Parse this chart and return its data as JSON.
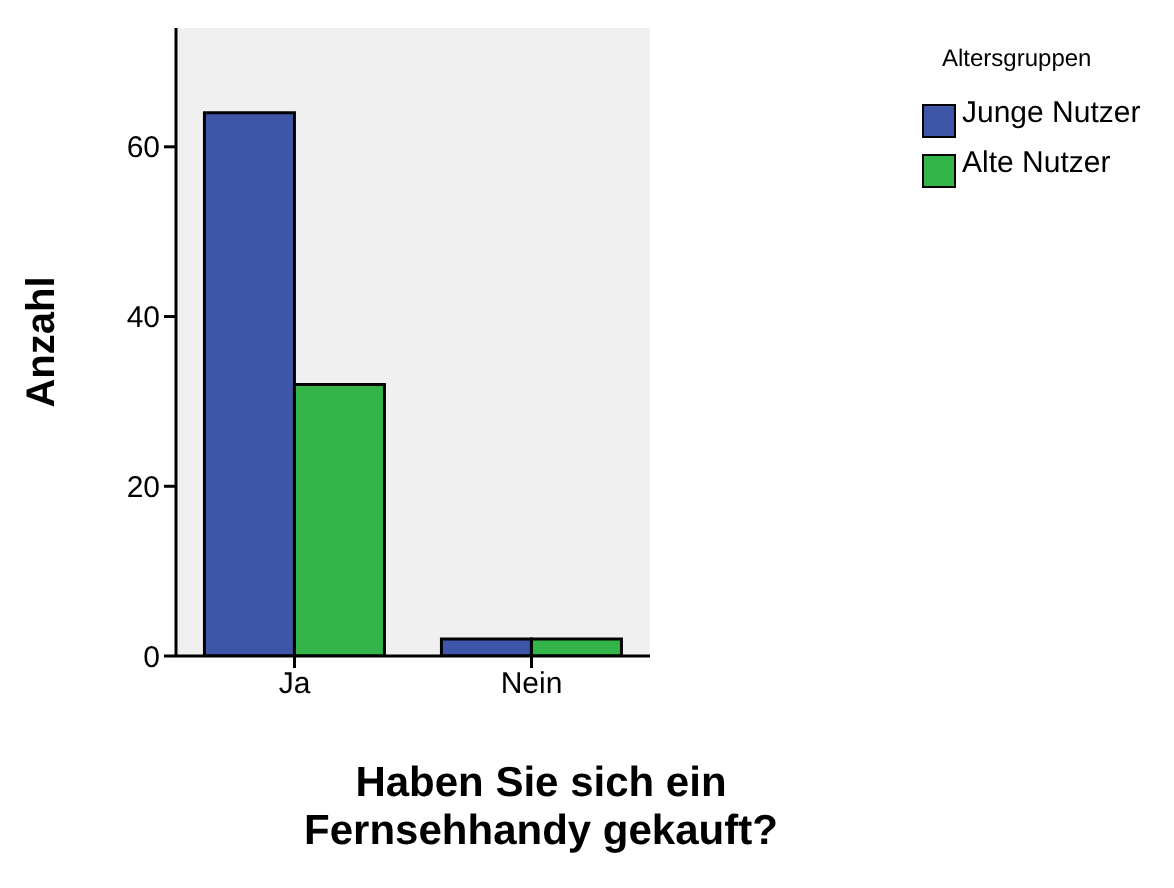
{
  "chart_data": {
    "type": "bar",
    "xlabel": "Haben Sie sich ein Fernsehhandy gekauft?",
    "ylabel": "Anzahl",
    "legend_title": "Altersgruppen",
    "legend": "top right",
    "categories": [
      "Ja",
      "Nein"
    ],
    "ylim": [
      0,
      74
    ],
    "yticks": [
      0,
      20,
      40,
      60
    ],
    "series": [
      {
        "name": "Junge Nutzer",
        "color": "#3f56a8",
        "values": [
          64,
          2
        ]
      },
      {
        "name": "Alte Nutzer",
        "color": "#33b54a",
        "values": [
          32,
          2
        ]
      }
    ]
  }
}
